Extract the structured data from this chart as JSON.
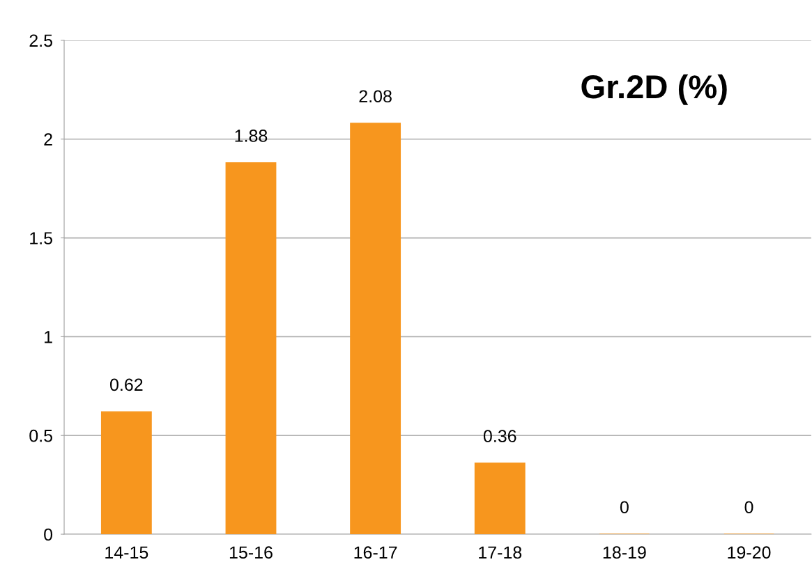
{
  "chart_data": {
    "type": "bar",
    "title": "Gr.2D (%)",
    "categories": [
      "14-15",
      "15-16",
      "16-17",
      "17-18",
      "18-19",
      "19-20"
    ],
    "values": [
      0.62,
      1.88,
      2.08,
      0.36,
      0,
      0
    ],
    "color": "#f7961e",
    "ylim": [
      0,
      2.5
    ],
    "yticks": [
      0,
      0.5,
      1,
      1.5,
      2,
      2.5
    ],
    "grid": "y",
    "data_labels": true
  }
}
